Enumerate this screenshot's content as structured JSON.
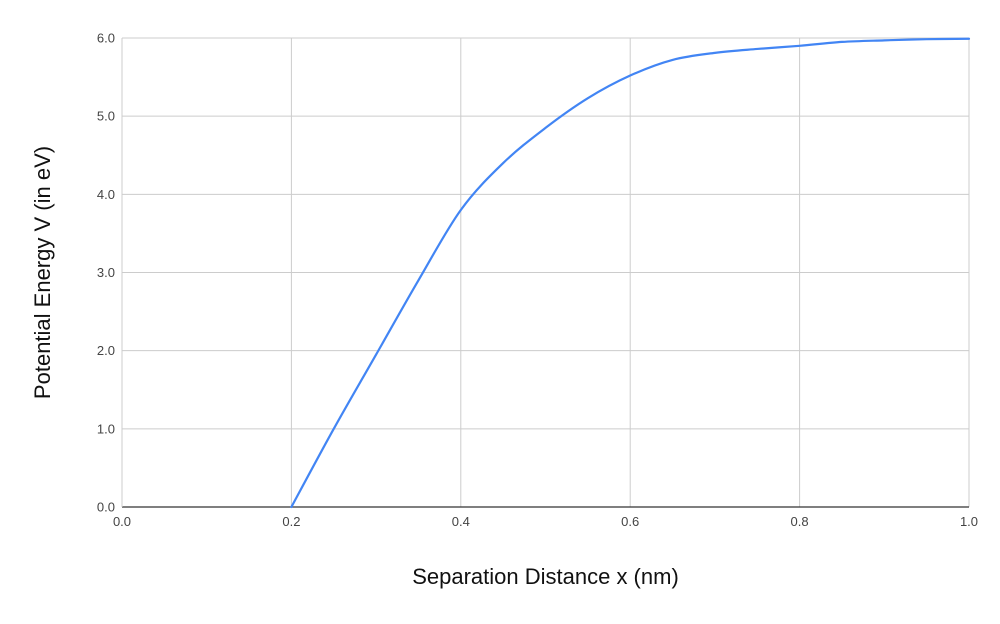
{
  "chart_data": {
    "type": "line",
    "title": "",
    "xlabel": "Separation Distance x (nm)",
    "ylabel": "Potential Energy V (in eV)",
    "xlim": [
      0.0,
      1.0
    ],
    "ylim": [
      0.0,
      6.0
    ],
    "x_ticks": [
      "0.0",
      "0.2",
      "0.4",
      "0.6",
      "0.8",
      "1.0"
    ],
    "y_ticks": [
      "0.0",
      "1.0",
      "2.0",
      "3.0",
      "4.0",
      "5.0",
      "6.0"
    ],
    "grid": true,
    "legend": "none",
    "series": [
      {
        "color": "#4285f4",
        "x": [
          0.2,
          0.25,
          0.3,
          0.35,
          0.4,
          0.45,
          0.5,
          0.55,
          0.6,
          0.65,
          0.7,
          0.75,
          0.8,
          0.85,
          0.9,
          0.95,
          1.0
        ],
        "y": [
          0.0,
          1.0,
          1.95,
          2.9,
          3.8,
          4.4,
          4.85,
          5.23,
          5.52,
          5.72,
          5.81,
          5.86,
          5.9,
          5.95,
          5.97,
          5.985,
          5.99
        ]
      }
    ]
  },
  "colors": {
    "grid": "#cccccc",
    "axis": "#333333",
    "tick_text": "#444444",
    "label_text": "#111111"
  }
}
